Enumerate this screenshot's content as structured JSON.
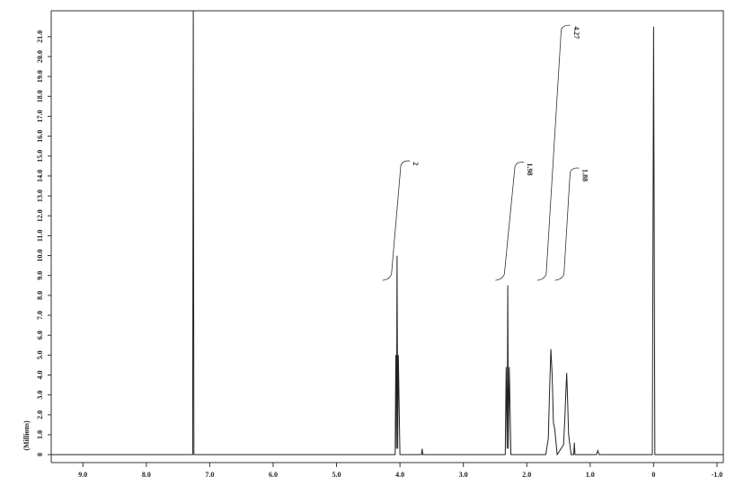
{
  "chart_data": {
    "type": "line",
    "ylabel": "(Millions)",
    "x": [
      9.5,
      7.3,
      7.27,
      7.26,
      7.25,
      7.22,
      4.1,
      4.075,
      4.065,
      4.055,
      4.045,
      4.035,
      4.025,
      4.0,
      3.66,
      3.65,
      3.64,
      2.34,
      2.325,
      2.31,
      2.3,
      2.29,
      2.275,
      2.25,
      1.7,
      1.66,
      1.64,
      1.62,
      1.6,
      1.58,
      1.56,
      1.52,
      1.42,
      1.4,
      1.385,
      1.37,
      1.355,
      1.34,
      1.3,
      1.26,
      1.25,
      1.24,
      0.9,
      0.88,
      0.86,
      0.02,
      0,
      -0.02,
      -1.1
    ],
    "values": [
      0,
      0,
      0,
      22.3,
      0,
      0,
      0,
      0,
      5.0,
      0.3,
      10.0,
      0.3,
      5.0,
      0,
      0,
      0.3,
      0,
      0,
      4.4,
      0.3,
      8.5,
      0.3,
      4.4,
      0,
      0,
      0.8,
      3.2,
      5.3,
      4.0,
      1.6,
      1.3,
      0,
      0.5,
      1.8,
      3.0,
      4.1,
      2.6,
      1.0,
      0,
      0,
      0.6,
      0,
      0,
      0.2,
      0,
      0,
      21.5,
      0,
      0
    ],
    "color": "#222222",
    "xlim": [
      9.5,
      -1.1
    ],
    "xticks": [
      {
        "value": 9,
        "label": "9.0"
      },
      {
        "value": 8,
        "label": "8.0"
      },
      {
        "value": 7,
        "label": "7.0"
      },
      {
        "value": 6,
        "label": "6.0"
      },
      {
        "value": 5,
        "label": "5.0"
      },
      {
        "value": 4,
        "label": "4.0"
      },
      {
        "value": 3,
        "label": "3.0"
      },
      {
        "value": 2,
        "label": "2.0"
      },
      {
        "value": 1,
        "label": "1.0"
      },
      0,
      {
        "value": -1,
        "label": "-1.0"
      }
    ],
    "ylim": [
      -0.4,
      22.3
    ],
    "yticks": [
      0,
      {
        "value": 1,
        "label": "1.0"
      },
      {
        "value": 2,
        "label": "2.0"
      },
      {
        "value": 3,
        "label": "3.0"
      },
      {
        "value": 4,
        "label": "4.0"
      },
      {
        "value": 5,
        "label": "5.0"
      },
      {
        "value": 6,
        "label": "6.0"
      },
      {
        "value": 7,
        "label": "7.0"
      },
      {
        "value": 8,
        "label": "8.0"
      },
      {
        "value": 9,
        "label": "9.0"
      },
      {
        "value": 10,
        "label": "10.0"
      },
      {
        "value": 11,
        "label": "11.0"
      },
      {
        "value": 12,
        "label": "12.0"
      },
      {
        "value": 13,
        "label": "13.0"
      },
      {
        "value": 14,
        "label": "14.0"
      },
      {
        "value": 15,
        "label": "15.0"
      },
      {
        "value": 16,
        "label": "16.0"
      },
      {
        "value": 17,
        "label": "17.0"
      },
      {
        "value": 18,
        "label": "18.0"
      },
      {
        "value": 19,
        "label": "19.0"
      },
      {
        "value": 20,
        "label": "20.0"
      },
      {
        "value": 21,
        "label": "21.0"
      }
    ],
    "integrals": [
      {
        "value": 2,
        "range": [
          4.19,
          3.93
        ]
      },
      {
        "value": 1.98,
        "range": [
          2.41,
          2.13
        ]
      },
      {
        "value": 4.27,
        "range": [
          1.75,
          1.4
        ]
      },
      {
        "value": 1.88,
        "range": [
          1.47,
          1.26
        ]
      }
    ]
  }
}
